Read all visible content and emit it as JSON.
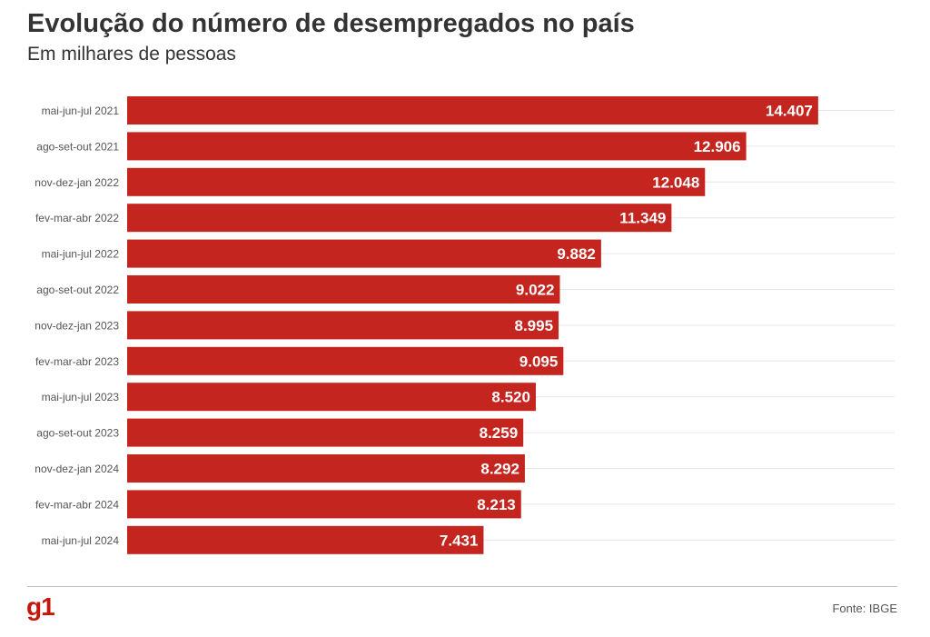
{
  "header": {
    "title": "Evolução do número de desempregados no país",
    "subtitle": "Em milhares de pessoas"
  },
  "footer": {
    "logo_text": "g1",
    "source": "Fonte: IBGE"
  },
  "colors": {
    "bar": "#c4251f",
    "label": "#ffffff",
    "grid": "#e6e6e6"
  },
  "chart_data": {
    "type": "bar",
    "orientation": "horizontal",
    "title": "Evolução do número de desempregados no país",
    "subtitle": "Em milhares de pessoas",
    "xlim": [
      0,
      16000
    ],
    "grid": true,
    "categories": [
      "mai-jun-jul 2021",
      "ago-set-out 2021",
      "nov-dez-jan 2022",
      "fev-mar-abr 2022",
      "mai-jun-jul 2022",
      "ago-set-out 2022",
      "nov-dez-jan 2023",
      "fev-mar-abr 2023",
      "mai-jun-jul 2023",
      "ago-set-out 2023",
      "nov-dez-jan 2024",
      "fev-mar-abr 2024",
      "mai-jun-jul 2024"
    ],
    "values": [
      14407,
      12906,
      12048,
      11349,
      9882,
      9022,
      8995,
      9095,
      8520,
      8259,
      8292,
      8213,
      7431
    ],
    "value_labels": [
      "14.407",
      "12.906",
      "12.048",
      "11.349",
      "9.882",
      "9.022",
      "8.995",
      "9.095",
      "8.520",
      "8.259",
      "8.292",
      "8.213",
      "7.431"
    ]
  }
}
